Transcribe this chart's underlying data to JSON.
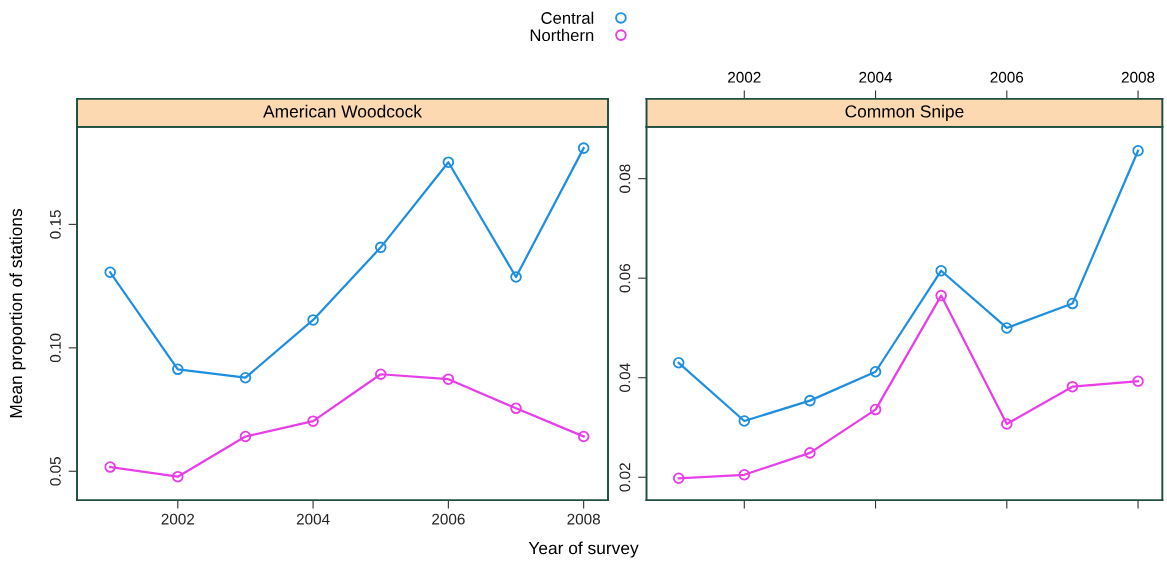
{
  "chart_data": [
    {
      "type": "line",
      "title": "American Woodcock",
      "ylabel": "Mean proportion of stations",
      "xlabel": "Year of survey",
      "legend": "top",
      "marker": "circle",
      "grid": false,
      "x": [
        2001,
        2002,
        2003,
        2004,
        2005,
        2006,
        2007,
        2008
      ],
      "series": [
        {
          "name": "Central",
          "color": "#1e8fe0",
          "values": [
            0.1306,
            0.0913,
            0.0879,
            0.1113,
            0.1407,
            0.1752,
            0.1287,
            0.1809
          ]
        },
        {
          "name": "Northern",
          "color": "#e83de8",
          "values": [
            0.0517,
            0.0478,
            0.0641,
            0.0703,
            0.0893,
            0.0873,
            0.0755,
            0.0641
          ]
        }
      ],
      "xlim": [
        2000.51,
        2008.36
      ],
      "xticks": [
        2002,
        2004,
        2006,
        2008
      ],
      "ylim": [
        0.0383,
        0.1895
      ],
      "yticks": [
        {
          "value": 0.05,
          "label": "0.05"
        },
        {
          "value": 0.1,
          "label": "0.10"
        },
        {
          "value": 0.15,
          "label": "0.15"
        }
      ]
    },
    {
      "type": "line",
      "title": "Common Snipe",
      "marker": "circle",
      "grid": false,
      "x": [
        2001,
        2002,
        2003,
        2004,
        2005,
        2006,
        2007,
        2008
      ],
      "series": [
        {
          "color": "#1e8fe0",
          "values": [
            0.043,
            0.0313,
            0.0354,
            0.0412,
            0.0615,
            0.05,
            0.0549,
            0.0856
          ]
        },
        {
          "color": "#e83de8",
          "values": [
            0.0198,
            0.0205,
            0.0249,
            0.0336,
            0.0565,
            0.0307,
            0.0382,
            0.0393
          ]
        }
      ],
      "xlim": [
        2000.51,
        2008.37
      ],
      "xticks": [
        2002,
        2004,
        2006,
        2008
      ],
      "ylim": [
        0.0154,
        0.0904
      ],
      "yticks": [
        {
          "value": 0.02,
          "label": "0.02"
        },
        {
          "value": 0.04,
          "label": "0.04"
        },
        {
          "value": 0.06,
          "label": "0.06"
        },
        {
          "value": 0.08,
          "label": "0.08"
        }
      ]
    }
  ]
}
